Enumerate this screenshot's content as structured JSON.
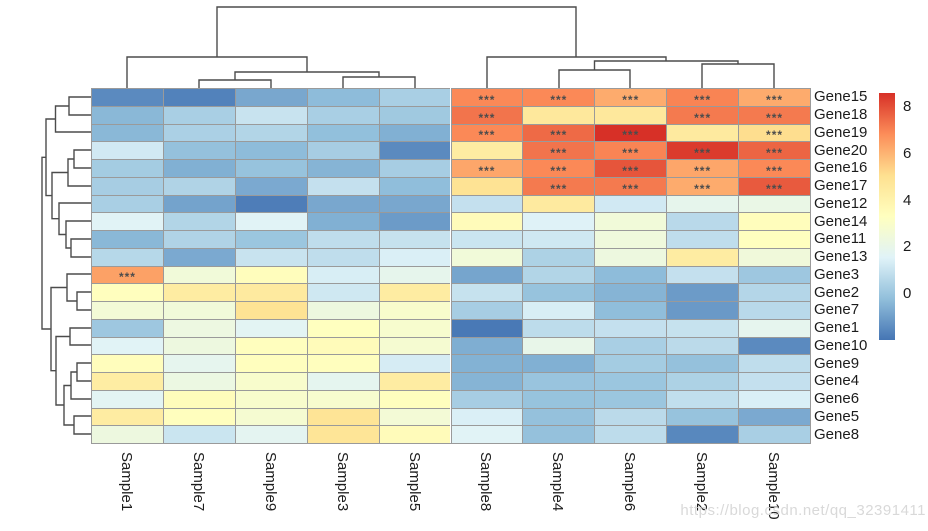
{
  "watermark": "https://blog.csdn.net/qq_32391411",
  "chart_data": {
    "type": "heatmap",
    "title": "",
    "rows": [
      "Gene15",
      "Gene18",
      "Gene19",
      "Gene20",
      "Gene16",
      "Gene17",
      "Gene12",
      "Gene14",
      "Gene11",
      "Gene13",
      "Gene3",
      "Gene2",
      "Gene7",
      "Gene1",
      "Gene10",
      "Gene9",
      "Gene4",
      "Gene6",
      "Gene5",
      "Gene8"
    ],
    "columns": [
      "Sample1",
      "Sample7",
      "Sample9",
      "Sample3",
      "Sample5",
      "Sample8",
      "Sample4",
      "Sample6",
      "Sample2",
      "Sample10"
    ],
    "values": [
      [
        -1.5,
        -1.7,
        -0.8,
        -0.3,
        0.3,
        6.9,
        6.9,
        6.2,
        7.0,
        6.2
      ],
      [
        -0.4,
        0.3,
        1.0,
        0.3,
        0.1,
        7.3,
        4.6,
        4.6,
        7.2,
        7.2
      ],
      [
        -0.4,
        0.35,
        0.5,
        -0.2,
        -0.6,
        6.9,
        7.5,
        8.6,
        4.5,
        5.1
      ],
      [
        1.2,
        -0.15,
        -0.3,
        0.25,
        -1.5,
        4.4,
        7.3,
        7.0,
        8.4,
        7.6
      ],
      [
        0.2,
        -0.6,
        -0.1,
        -0.5,
        0.25,
        6.3,
        6.9,
        7.9,
        6.3,
        6.9
      ],
      [
        0.25,
        0.45,
        -0.75,
        0.9,
        -0.25,
        4.9,
        7.2,
        7.2,
        6.2,
        7.8
      ],
      [
        0.3,
        -0.9,
        -1.8,
        -0.8,
        -0.8,
        0.9,
        4.5,
        1.2,
        1.9,
        2.1
      ],
      [
        1.6,
        0.5,
        1.6,
        -0.6,
        -1.1,
        3.5,
        1.5,
        2.5,
        0.65,
        3.4
      ],
      [
        -0.4,
        0.45,
        0.0,
        0.8,
        0.95,
        1.05,
        1.15,
        2.4,
        0.8,
        3.3
      ],
      [
        0.6,
        -0.75,
        1.0,
        0.8,
        1.4,
        2.5,
        0.4,
        2.3,
        4.4,
        2.45
      ],
      [
        6.4,
        2.5,
        3.4,
        1.35,
        1.9,
        -0.85,
        0.5,
        -0.3,
        0.9,
        0.05
      ],
      [
        3.35,
        4.4,
        4.5,
        1.15,
        4.4,
        0.95,
        -0.1,
        -0.5,
        -1.1,
        0.55
      ],
      [
        2.6,
        2.5,
        4.9,
        2.3,
        2.9,
        0.25,
        1.35,
        -0.25,
        -1.15,
        0.65
      ],
      [
        0.05,
        2.25,
        1.7,
        3.3,
        2.85,
        -1.9,
        0.75,
        0.9,
        0.95,
        1.85
      ],
      [
        1.6,
        2.3,
        3.35,
        3.5,
        2.75,
        -0.65,
        2.0,
        0.3,
        0.7,
        -1.5
      ],
      [
        3.4,
        1.85,
        3.35,
        3.35,
        1.3,
        -0.55,
        -0.6,
        0.2,
        -0.15,
        0.8
      ],
      [
        4.35,
        2.2,
        2.9,
        1.8,
        4.4,
        -0.5,
        -0.05,
        0.0,
        0.4,
        0.9
      ],
      [
        1.7,
        3.45,
        2.9,
        2.85,
        3.35,
        0.25,
        -0.1,
        0.0,
        0.85,
        1.4
      ],
      [
        4.4,
        3.35,
        2.75,
        4.85,
        2.6,
        1.4,
        -0.15,
        0.7,
        -0.1,
        -0.75
      ],
      [
        2.3,
        1.05,
        1.75,
        4.8,
        3.5,
        1.6,
        -0.15,
        0.75,
        -1.55,
        0.3
      ]
    ],
    "significance_label": "***",
    "significant_cells": [
      [
        0,
        5
      ],
      [
        0,
        6
      ],
      [
        0,
        7
      ],
      [
        0,
        8
      ],
      [
        0,
        9
      ],
      [
        1,
        5
      ],
      [
        1,
        8
      ],
      [
        1,
        9
      ],
      [
        2,
        5
      ],
      [
        2,
        6
      ],
      [
        2,
        7
      ],
      [
        2,
        9
      ],
      [
        3,
        6
      ],
      [
        3,
        7
      ],
      [
        3,
        8
      ],
      [
        3,
        9
      ],
      [
        4,
        5
      ],
      [
        4,
        6
      ],
      [
        4,
        7
      ],
      [
        4,
        8
      ],
      [
        4,
        9
      ],
      [
        5,
        6
      ],
      [
        5,
        7
      ],
      [
        5,
        8
      ],
      [
        5,
        9
      ],
      [
        10,
        0
      ]
    ],
    "colorscale": {
      "palette": [
        "#4575B4",
        "#91BFDB",
        "#E0F3F8",
        "#FFFFBF",
        "#FEE090",
        "#FC8D59",
        "#D73027"
      ],
      "domain": [
        -2.0,
        8.6
      ]
    },
    "legend": {
      "ticks": [
        8,
        6,
        4,
        2,
        0
      ],
      "position": "right"
    },
    "grid_color": "#9a9a9a",
    "dendrogram_color": "#4c4c4c",
    "col_dendrogram_segments": [
      [
        199,
        88,
        199,
        80,
        271,
        80,
        271,
        88
      ],
      [
        343,
        88,
        343,
        77,
        415,
        77,
        415,
        88
      ],
      [
        235,
        80,
        235,
        72,
        379,
        72,
        379,
        77
      ],
      [
        127,
        88,
        127,
        57,
        307,
        57,
        307,
        72
      ],
      [
        559,
        88,
        559,
        70,
        630,
        70,
        630,
        88
      ],
      [
        702,
        88,
        702,
        64,
        774,
        64,
        774,
        88
      ],
      [
        594.5,
        70,
        594.5,
        61,
        738,
        61,
        738,
        64
      ],
      [
        487,
        88,
        487,
        57,
        666,
        57,
        666,
        61
      ],
      [
        217,
        57,
        217,
        7,
        576,
        7,
        576,
        57
      ]
    ],
    "row_dendrogram_segments": [
      [
        91,
        97,
        69,
        97,
        69,
        115,
        91,
        115
      ],
      [
        69,
        106,
        55.5,
        106,
        55.5,
        132,
        91,
        132
      ],
      [
        91,
        150,
        74,
        150,
        74,
        168,
        91,
        168
      ],
      [
        74,
        159,
        68,
        159,
        68,
        186,
        91,
        186
      ],
      [
        91,
        239,
        71,
        239,
        71,
        257,
        91,
        257
      ],
      [
        91,
        221,
        66,
        221,
        66,
        248,
        71,
        248
      ],
      [
        91,
        203,
        59,
        203,
        59,
        234.5,
        66,
        234.5
      ],
      [
        68,
        172.5,
        52,
        172.5,
        52,
        218.7,
        59,
        218.7
      ],
      [
        55.5,
        119,
        46,
        119,
        46,
        195.6,
        52,
        195.6
      ],
      [
        91,
        292,
        77,
        292,
        77,
        310,
        91,
        310
      ],
      [
        91,
        274,
        67,
        274,
        67,
        301,
        77,
        301
      ],
      [
        91,
        328,
        70,
        328,
        70,
        345,
        91,
        345
      ],
      [
        91,
        363,
        77,
        363,
        77,
        381,
        91,
        381
      ],
      [
        77,
        372,
        71,
        372,
        71,
        399,
        91,
        399
      ],
      [
        91,
        416,
        74,
        416,
        74,
        434,
        91,
        434
      ],
      [
        71,
        385.5,
        64,
        385.5,
        64,
        425,
        74,
        425
      ],
      [
        70,
        336.5,
        56,
        336.5,
        56,
        405,
        64,
        405
      ],
      [
        67,
        287.5,
        51,
        287.5,
        51,
        370.7,
        56,
        370.7
      ],
      [
        46,
        157.3,
        42,
        157.3,
        42,
        329,
        51,
        329
      ]
    ]
  }
}
